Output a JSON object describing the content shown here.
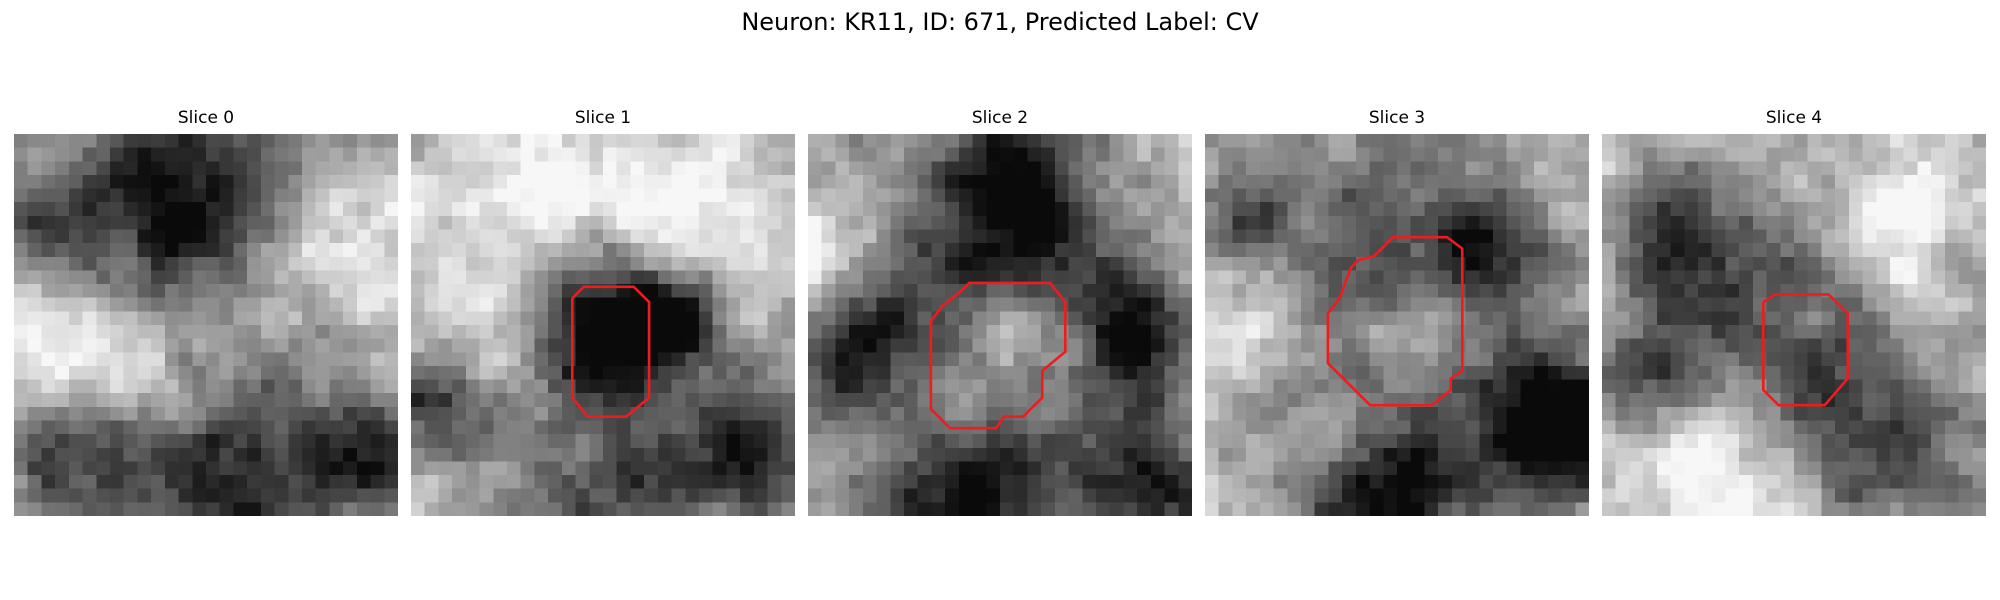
{
  "figure": {
    "title": "Neuron: KR11, ID: 671, Predicted Label: CV",
    "image_grid": 28,
    "contour_color": "#ee1c1c"
  },
  "panels": [
    {
      "title": "Slice 0",
      "seed": 11,
      "dark_blobs": [
        [
          0.47,
          0.2,
          0.22,
          0.75
        ],
        [
          0.15,
          0.85,
          0.14,
          0.55
        ],
        [
          0.55,
          0.88,
          0.18,
          0.7
        ],
        [
          0.93,
          0.82,
          0.12,
          0.6
        ],
        [
          0.08,
          0.25,
          0.1,
          0.35
        ]
      ],
      "light_blobs": [
        [
          0.78,
          0.28,
          0.16,
          0.35
        ],
        [
          0.35,
          0.65,
          0.2,
          0.3
        ],
        [
          0.08,
          0.55,
          0.12,
          0.2
        ]
      ],
      "contour": []
    },
    {
      "title": "Slice 1",
      "seed": 23,
      "dark_blobs": [
        [
          0.52,
          0.5,
          0.14,
          0.95
        ],
        [
          0.7,
          0.48,
          0.08,
          0.45
        ],
        [
          0.08,
          0.72,
          0.12,
          0.45
        ],
        [
          0.9,
          0.82,
          0.14,
          0.5
        ],
        [
          0.55,
          0.95,
          0.18,
          0.45
        ]
      ],
      "light_blobs": [
        [
          0.35,
          0.2,
          0.2,
          0.3
        ],
        [
          0.18,
          0.55,
          0.1,
          0.2
        ],
        [
          0.75,
          0.25,
          0.15,
          0.25
        ]
      ],
      "contour": [
        [
          0.42,
          0.43
        ],
        [
          0.45,
          0.4
        ],
        [
          0.58,
          0.4
        ],
        [
          0.62,
          0.44
        ],
        [
          0.62,
          0.69
        ],
        [
          0.56,
          0.74
        ],
        [
          0.46,
          0.74
        ],
        [
          0.42,
          0.69
        ],
        [
          0.42,
          0.43
        ]
      ]
    },
    {
      "title": "Slice 2",
      "seed": 37,
      "dark_blobs": [
        [
          0.5,
          0.35,
          0.2,
          0.7
        ],
        [
          0.12,
          0.55,
          0.12,
          0.6
        ],
        [
          0.85,
          0.5,
          0.12,
          0.6
        ],
        [
          0.4,
          0.92,
          0.18,
          0.7
        ],
        [
          0.88,
          0.9,
          0.14,
          0.6
        ],
        [
          0.55,
          0.08,
          0.12,
          0.5
        ]
      ],
      "light_blobs": [
        [
          0.55,
          0.5,
          0.12,
          0.45
        ],
        [
          0.05,
          0.35,
          0.1,
          0.35
        ],
        [
          0.35,
          0.72,
          0.1,
          0.3
        ]
      ],
      "contour": [
        [
          0.35,
          0.45
        ],
        [
          0.4,
          0.41
        ],
        [
          0.42,
          0.39
        ],
        [
          0.63,
          0.39
        ],
        [
          0.67,
          0.44
        ],
        [
          0.67,
          0.57
        ],
        [
          0.61,
          0.62
        ],
        [
          0.61,
          0.69
        ],
        [
          0.56,
          0.74
        ],
        [
          0.51,
          0.74
        ],
        [
          0.49,
          0.77
        ],
        [
          0.37,
          0.77
        ],
        [
          0.32,
          0.72
        ],
        [
          0.32,
          0.49
        ],
        [
          0.35,
          0.45
        ]
      ]
    },
    {
      "title": "Slice 3",
      "seed": 53,
      "dark_blobs": [
        [
          0.5,
          0.45,
          0.24,
          0.8
        ],
        [
          0.92,
          0.78,
          0.14,
          0.85
        ],
        [
          0.45,
          0.95,
          0.14,
          0.75
        ],
        [
          0.1,
          0.2,
          0.08,
          0.35
        ],
        [
          0.75,
          0.3,
          0.1,
          0.35
        ]
      ],
      "light_blobs": [
        [
          0.52,
          0.5,
          0.16,
          0.65
        ],
        [
          0.15,
          0.5,
          0.1,
          0.35
        ],
        [
          0.35,
          0.82,
          0.1,
          0.3
        ]
      ],
      "contour": [
        [
          0.35,
          0.43
        ],
        [
          0.38,
          0.35
        ],
        [
          0.4,
          0.33
        ],
        [
          0.44,
          0.32
        ],
        [
          0.49,
          0.27
        ],
        [
          0.63,
          0.27
        ],
        [
          0.67,
          0.3
        ],
        [
          0.67,
          0.62
        ],
        [
          0.64,
          0.64
        ],
        [
          0.64,
          0.67
        ],
        [
          0.59,
          0.71
        ],
        [
          0.43,
          0.71
        ],
        [
          0.32,
          0.6
        ],
        [
          0.32,
          0.47
        ],
        [
          0.35,
          0.43
        ]
      ]
    },
    {
      "title": "Slice 4",
      "seed": 71,
      "dark_blobs": [
        [
          0.52,
          0.55,
          0.2,
          0.6
        ],
        [
          0.18,
          0.28,
          0.12,
          0.55
        ],
        [
          0.15,
          0.62,
          0.1,
          0.45
        ],
        [
          0.75,
          0.85,
          0.14,
          0.45
        ],
        [
          0.95,
          0.35,
          0.08,
          0.35
        ]
      ],
      "light_blobs": [
        [
          0.52,
          0.5,
          0.08,
          0.2
        ],
        [
          0.8,
          0.3,
          0.14,
          0.4
        ],
        [
          0.35,
          0.85,
          0.18,
          0.35
        ]
      ],
      "contour": [
        [
          0.42,
          0.44
        ],
        [
          0.45,
          0.42
        ],
        [
          0.59,
          0.42
        ],
        [
          0.64,
          0.47
        ],
        [
          0.64,
          0.64
        ],
        [
          0.58,
          0.71
        ],
        [
          0.46,
          0.71
        ],
        [
          0.42,
          0.67
        ],
        [
          0.42,
          0.44
        ]
      ]
    }
  ]
}
